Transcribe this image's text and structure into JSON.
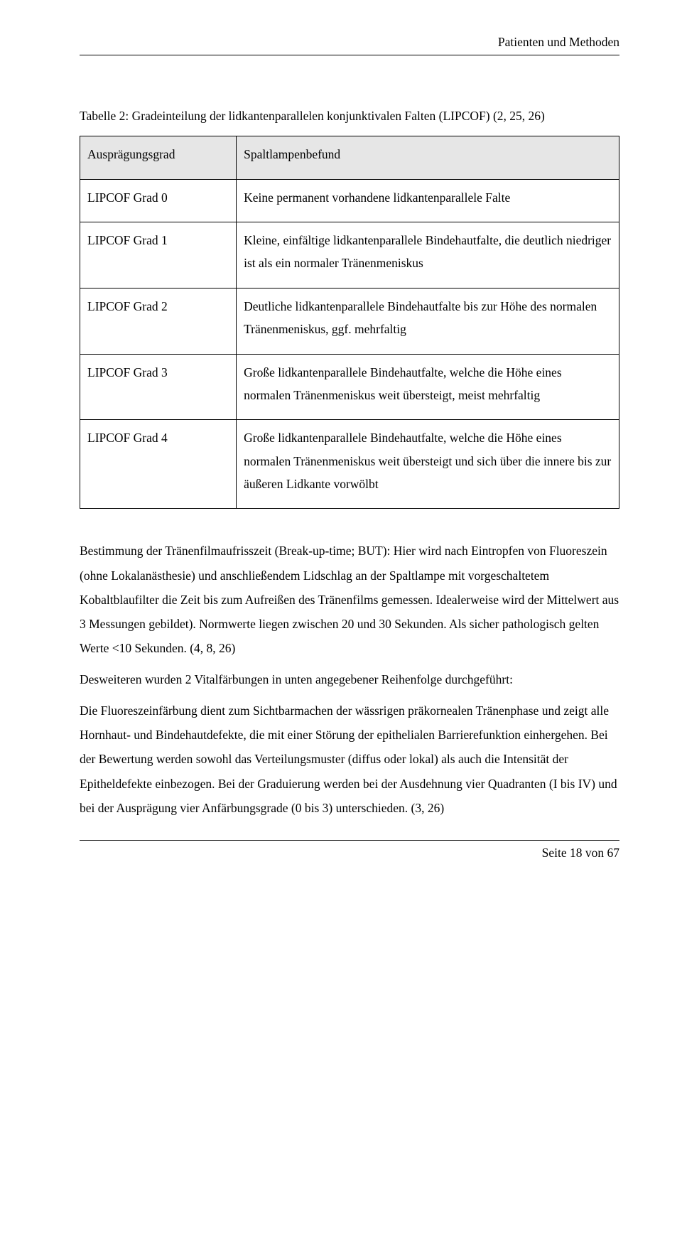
{
  "header": {
    "text": "Patienten und Methoden"
  },
  "caption": "Tabelle 2: Gradeinteilung der lidkantenparallelen konjunktivalen Falten (LIPCOF) (2, 25, 26)",
  "table": {
    "head": {
      "c0": "Ausprägungsgrad",
      "c1": "Spaltlampenbefund"
    },
    "rows": [
      {
        "c0": "LIPCOF  Grad 0",
        "c1": "Keine permanent vorhandene lidkantenparallele Falte"
      },
      {
        "c0": "LIPCOF  Grad 1",
        "c1": "Kleine, einfältige lidkantenparallele Bindehautfalte, die deutlich niedriger ist als ein normaler Tränenmeniskus"
      },
      {
        "c0": "LIPCOF  Grad 2",
        "c1": "Deutliche lidkantenparallele Bindehautfalte bis zur Höhe des normalen Tränenmeniskus, ggf. mehrfaltig"
      },
      {
        "c0": "LIPCOF  Grad 3",
        "c1": "Große lidkantenparallele Bindehautfalte, welche die Höhe eines normalen Tränenmeniskus weit übersteigt, meist mehrfaltig"
      },
      {
        "c0": "LIPCOF  Grad 4",
        "c1": "Große lidkantenparallele Bindehautfalte, welche die Höhe eines normalen Tränenmeniskus weit übersteigt und sich über die innere bis zur äußeren Lidkante vorwölbt"
      }
    ]
  },
  "paragraphs": {
    "p1": "Bestimmung der Tränenfilmaufrisszeit (Break-up-time; BUT): Hier wird nach Eintropfen von Fluoreszein (ohne Lokalanästhesie) und anschließendem Lidschlag an der Spaltlampe mit vorgeschaltetem Kobaltblaufilter die Zeit bis zum Aufreißen des Tränenfilms gemessen. Idealerweise wird der Mittelwert aus 3 Messungen gebildet). Normwerte liegen zwischen 20 und 30 Sekunden. Als sicher pathologisch gelten Werte <10 Sekunden. (4, 8, 26)",
    "p2": "Desweiteren wurden 2 Vitalfärbungen in unten angegebener Reihenfolge durchgeführt:",
    "p3": "Die Fluoreszeinfärbung dient zum Sichtbarmachen der wässrigen präkornealen Tränenphase und zeigt alle Hornhaut- und Bindehautdefekte, die mit einer Störung der epithelialen Barrierefunktion einhergehen. Bei der Bewertung werden sowohl das Verteilungsmuster (diffus oder lokal) als auch die Intensität der Epitheldefekte einbezogen. Bei der Graduierung werden bei der Ausdehnung vier Quadranten (I bis IV) und bei der Ausprägung vier Anfärbungsgrade (0 bis 3) unterschieden. (3, 26)"
  },
  "footer": {
    "text": "Seite 18 von 67"
  }
}
